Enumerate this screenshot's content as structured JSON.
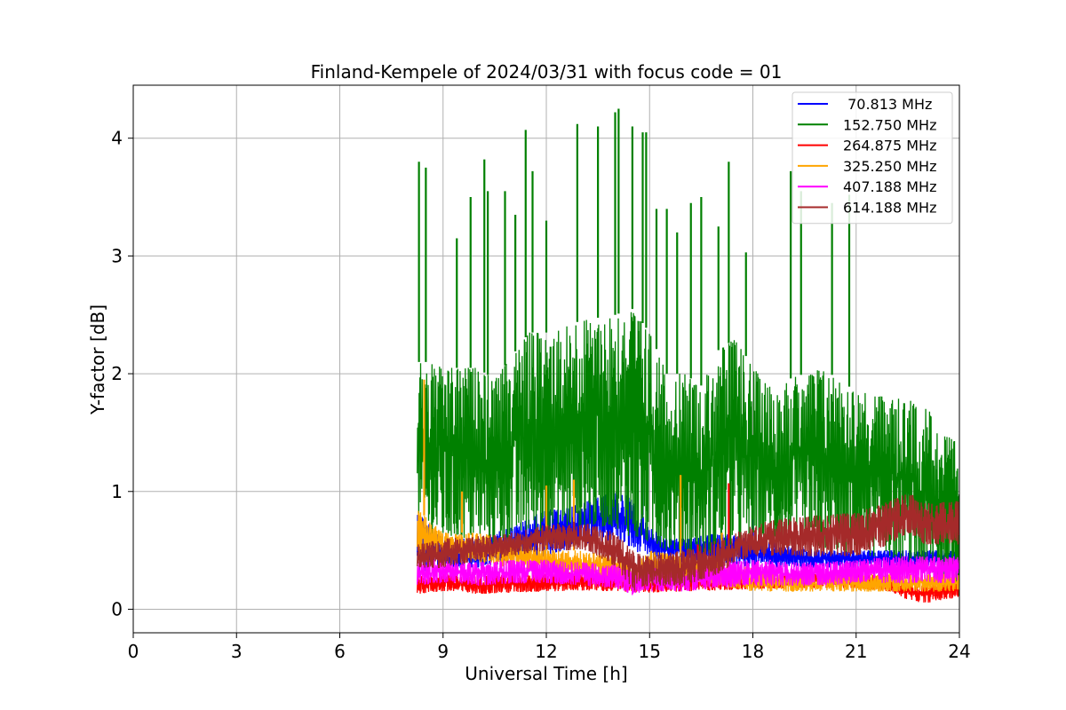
{
  "chart_data": {
    "type": "line",
    "title": "Finland-Kempele of 2024/03/31 with focus code = 01",
    "xlabel": "Universal Time [h]",
    "ylabel": "Y-factor [dB]",
    "xlim": [
      0,
      24
    ],
    "ylim": [
      -0.2,
      4.45
    ],
    "xticks": [
      0,
      3,
      6,
      9,
      12,
      15,
      18,
      21,
      24
    ],
    "xtick_labels": [
      "0",
      "3",
      "6",
      "9",
      "12",
      "15",
      "18",
      "21",
      "24"
    ],
    "yticks": [
      0,
      1,
      2,
      3,
      4
    ],
    "ytick_labels": [
      "0",
      "1",
      "2",
      "3",
      "4"
    ],
    "grid": true,
    "legend_position": "top-right",
    "data_start_hour": 8.25,
    "series": [
      {
        "name": " 70.813 MHz",
        "color": "#0000ff",
        "x": [
          8.25,
          9,
          10,
          11,
          12,
          12.5,
          13,
          13.5,
          14,
          14.5,
          15,
          15.5,
          16,
          17,
          18,
          19,
          20,
          21,
          22,
          23,
          24
        ],
        "low": [
          0.3,
          0.35,
          0.35,
          0.4,
          0.45,
          0.5,
          0.55,
          0.55,
          0.6,
          0.5,
          0.45,
          0.4,
          0.4,
          0.4,
          0.35,
          0.35,
          0.35,
          0.35,
          0.35,
          0.35,
          0.35
        ],
        "high": [
          0.85,
          0.6,
          0.6,
          0.7,
          0.85,
          0.85,
          0.9,
          0.95,
          1.0,
          0.95,
          0.7,
          0.6,
          0.6,
          0.65,
          0.6,
          0.55,
          0.5,
          0.5,
          0.5,
          0.5,
          0.5
        ],
        "spikes": [
          {
            "x": 14.8,
            "y": 1.1
          },
          {
            "x": 18.0,
            "y": 0.85
          }
        ]
      },
      {
        "name": "152.750 MHz",
        "color": "#008000",
        "x": [
          8.25,
          8.5,
          9,
          10,
          10.5,
          11,
          11.5,
          12,
          13,
          14,
          14.5,
          15,
          15.5,
          16,
          16.5,
          17,
          17.5,
          18,
          18.5,
          19,
          20,
          20.5,
          21,
          22,
          23,
          23.5,
          24
        ],
        "low": [
          0.7,
          0.65,
          0.6,
          0.6,
          0.55,
          0.6,
          0.65,
          0.65,
          0.7,
          0.7,
          0.6,
          0.55,
          0.5,
          0.5,
          0.45,
          0.5,
          0.55,
          0.55,
          0.55,
          0.55,
          0.5,
          0.5,
          0.45,
          0.45,
          0.3,
          0.2,
          0.1
        ],
        "high": [
          2.1,
          2.1,
          2.05,
          2.05,
          1.95,
          2.15,
          2.35,
          2.35,
          2.45,
          2.5,
          2.55,
          2.35,
          2.0,
          2.0,
          1.9,
          2.2,
          2.3,
          2.05,
          1.9,
          1.95,
          2.05,
          1.95,
          1.85,
          1.8,
          1.75,
          1.5,
          1.4
        ],
        "spikes": [
          {
            "x": 8.3,
            "y": 3.8
          },
          {
            "x": 8.5,
            "y": 3.75
          },
          {
            "x": 9.4,
            "y": 3.15
          },
          {
            "x": 9.8,
            "y": 3.5
          },
          {
            "x": 10.2,
            "y": 3.82
          },
          {
            "x": 10.3,
            "y": 3.55
          },
          {
            "x": 10.8,
            "y": 3.55
          },
          {
            "x": 11.1,
            "y": 3.35
          },
          {
            "x": 11.4,
            "y": 4.07
          },
          {
            "x": 11.6,
            "y": 3.72
          },
          {
            "x": 12.0,
            "y": 3.3
          },
          {
            "x": 12.9,
            "y": 4.12
          },
          {
            "x": 13.5,
            "y": 4.1
          },
          {
            "x": 14.0,
            "y": 4.22
          },
          {
            "x": 14.1,
            "y": 4.25
          },
          {
            "x": 14.5,
            "y": 4.1
          },
          {
            "x": 14.8,
            "y": 4.05
          },
          {
            "x": 14.9,
            "y": 4.05
          },
          {
            "x": 15.2,
            "y": 3.4
          },
          {
            "x": 15.5,
            "y": 3.4
          },
          {
            "x": 15.8,
            "y": 3.2
          },
          {
            "x": 16.2,
            "y": 3.45
          },
          {
            "x": 16.5,
            "y": 3.5
          },
          {
            "x": 17.0,
            "y": 3.25
          },
          {
            "x": 17.3,
            "y": 3.8
          },
          {
            "x": 17.8,
            "y": 3.03
          },
          {
            "x": 19.1,
            "y": 3.72
          },
          {
            "x": 19.4,
            "y": 3.55
          },
          {
            "x": 20.3,
            "y": 3.45
          },
          {
            "x": 20.8,
            "y": 3.52
          }
        ]
      },
      {
        "name": "264.875 MHz",
        "color": "#ff0000",
        "x": [
          8.25,
          9,
          10,
          11,
          12,
          13,
          14,
          15,
          16,
          17,
          18,
          19,
          20,
          21,
          22,
          22.5,
          23,
          23.5,
          24
        ],
        "low": [
          0.13,
          0.15,
          0.13,
          0.14,
          0.15,
          0.16,
          0.15,
          0.14,
          0.15,
          0.16,
          0.17,
          0.18,
          0.18,
          0.18,
          0.15,
          0.08,
          0.05,
          0.08,
          0.1
        ],
        "high": [
          0.28,
          0.3,
          0.28,
          0.3,
          0.3,
          0.32,
          0.3,
          0.3,
          0.3,
          0.32,
          0.3,
          0.3,
          0.3,
          0.3,
          0.28,
          0.22,
          0.2,
          0.22,
          0.25
        ],
        "spikes": [
          {
            "x": 16.4,
            "y": 0.55
          },
          {
            "x": 17.3,
            "y": 1.07
          }
        ]
      },
      {
        "name": "325.250 MHz",
        "color": "#ffa500",
        "x": [
          8.25,
          9,
          10,
          11,
          12,
          13,
          14,
          14.5,
          15,
          16,
          17,
          18,
          19,
          20,
          21,
          22,
          23,
          24
        ],
        "low": [
          0.45,
          0.45,
          0.4,
          0.35,
          0.3,
          0.3,
          0.25,
          0.15,
          0.25,
          0.25,
          0.2,
          0.15,
          0.15,
          0.15,
          0.15,
          0.15,
          0.15,
          0.15
        ],
        "high": [
          0.85,
          0.65,
          0.65,
          0.6,
          0.5,
          0.5,
          0.45,
          0.35,
          0.5,
          0.45,
          0.4,
          0.35,
          0.3,
          0.3,
          0.3,
          0.3,
          0.3,
          0.3
        ],
        "spikes": [
          {
            "x": 8.45,
            "y": 1.95
          },
          {
            "x": 9.55,
            "y": 1.0
          },
          {
            "x": 12.0,
            "y": 1.05
          },
          {
            "x": 12.8,
            "y": 1.1
          },
          {
            "x": 15.9,
            "y": 1.14
          },
          {
            "x": 17.1,
            "y": 0.65
          }
        ]
      },
      {
        "name": "407.188 MHz",
        "color": "#ff00ff",
        "x": [
          8.25,
          9,
          10,
          11,
          12,
          13,
          14,
          14.5,
          15,
          16,
          17,
          18,
          19,
          20,
          21,
          22,
          23,
          24
        ],
        "low": [
          0.2,
          0.22,
          0.2,
          0.22,
          0.22,
          0.2,
          0.18,
          0.12,
          0.15,
          0.15,
          0.18,
          0.2,
          0.2,
          0.2,
          0.22,
          0.22,
          0.22,
          0.22
        ],
        "high": [
          0.42,
          0.42,
          0.4,
          0.42,
          0.42,
          0.4,
          0.38,
          0.32,
          0.35,
          0.35,
          0.4,
          0.42,
          0.4,
          0.4,
          0.42,
          0.45,
          0.45,
          0.45
        ],
        "spikes": [
          {
            "x": 18.5,
            "y": 0.42
          }
        ]
      },
      {
        "name": "614.188 MHz",
        "color": "#a52a2a",
        "x": [
          8.25,
          9,
          10,
          11,
          12,
          13,
          13.5,
          14,
          14.5,
          15,
          16,
          17,
          17.5,
          18,
          19,
          20,
          21,
          22,
          22.5,
          23,
          24
        ],
        "low": [
          0.35,
          0.35,
          0.4,
          0.45,
          0.5,
          0.5,
          0.45,
          0.35,
          0.15,
          0.2,
          0.2,
          0.3,
          0.4,
          0.45,
          0.45,
          0.45,
          0.45,
          0.55,
          0.65,
          0.55,
          0.55
        ],
        "high": [
          0.55,
          0.6,
          0.62,
          0.65,
          0.72,
          0.75,
          0.7,
          0.65,
          0.5,
          0.45,
          0.5,
          0.6,
          0.65,
          0.72,
          0.78,
          0.8,
          0.82,
          0.92,
          1.0,
          0.9,
          0.92
        ],
        "spikes": []
      }
    ]
  }
}
